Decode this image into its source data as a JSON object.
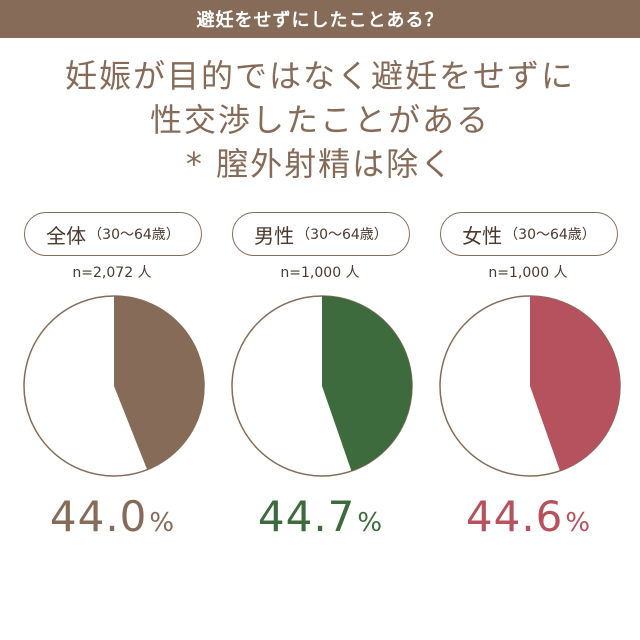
{
  "banner": {
    "title": "避妊をせずにしたことある？"
  },
  "headline": {
    "line1": "妊娠が目的ではなく避妊をせずに",
    "line2": "性交渉したことがある",
    "line3": "* 膣外射精は除く"
  },
  "colors": {
    "banner_bg": "#866b58",
    "total": "#866b58",
    "male": "#3d6b3d",
    "female": "#b5525d",
    "pie_rest": "#ffffff",
    "outline": "#866b58"
  },
  "chart_data": [
    {
      "type": "pie",
      "group": "全体",
      "age_range": "（30～64歳）",
      "n_label": "n=2,072 人",
      "value": 44.0,
      "value_label": "44.0",
      "unit": "%",
      "color": "#866b58"
    },
    {
      "type": "pie",
      "group": "男性",
      "age_range": "（30～64歳）",
      "n_label": "n=1,000 人",
      "value": 44.7,
      "value_label": "44.7",
      "unit": "%",
      "color": "#3d6b3d"
    },
    {
      "type": "pie",
      "group": "女性",
      "age_range": "（30～64歳）",
      "n_label": "n=1,000 人",
      "value": 44.6,
      "value_label": "44.6",
      "unit": "%",
      "color": "#b5525d"
    }
  ]
}
